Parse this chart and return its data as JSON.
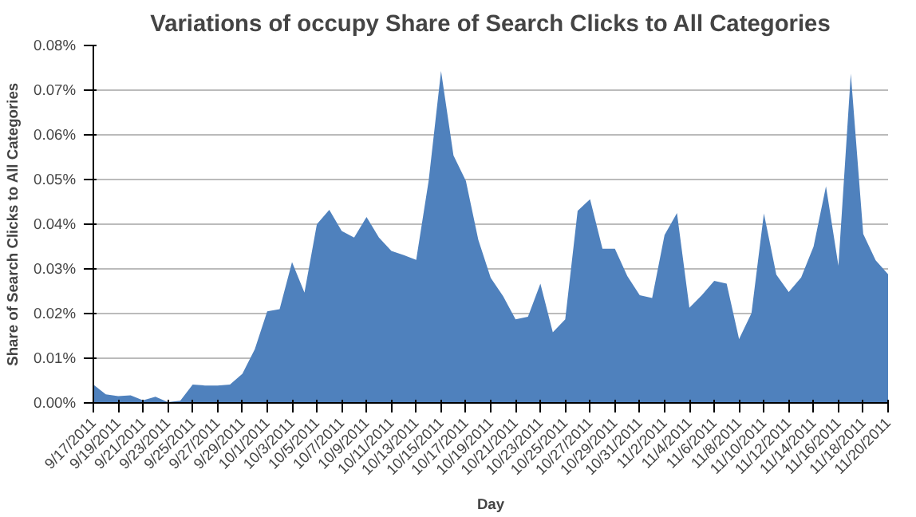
{
  "chart_data": {
    "type": "area",
    "title": "Variations of occupy Share of Search Clicks to All Categories",
    "xlabel": "Day",
    "ylabel": "Share of Search Clicks to All Categories",
    "categories": [
      "9/17/2011",
      null,
      "9/19/2011",
      null,
      "9/21/2011",
      null,
      "9/23/2011",
      null,
      "9/25/2011",
      null,
      "9/27/2011",
      null,
      "9/29/2011",
      null,
      "10/1/2011",
      null,
      "10/3/2011",
      null,
      "10/5/2011",
      null,
      "10/7/2011",
      null,
      "10/9/2011",
      null,
      "10/11/2011",
      null,
      "10/13/2011",
      null,
      "10/15/2011",
      null,
      "10/17/2011",
      null,
      "10/19/2011",
      null,
      "10/21/2011",
      null,
      "10/23/2011",
      null,
      "10/25/2011",
      null,
      "10/27/2011",
      null,
      "10/29/2011",
      null,
      "10/31/2011",
      null,
      "11/2/2011",
      null,
      "11/4/2011",
      null,
      "11/6/2011",
      null,
      "11/8/2011",
      null,
      "11/10/2011",
      null,
      "11/12/2011",
      null,
      "11/14/2011",
      null,
      "11/16/2011",
      null,
      "11/18/2011",
      null,
      "11/20/2011"
    ],
    "series": [
      {
        "color": "#4f81bd",
        "values": [
          0.0041,
          0.0019,
          0.0015,
          0.0017,
          0.0006,
          0.0014,
          0.0002,
          0.0005,
          0.0041,
          0.0039,
          0.0039,
          0.0041,
          0.0065,
          0.012,
          0.0205,
          0.021,
          0.0315,
          0.0247,
          0.04,
          0.0432,
          0.0385,
          0.037,
          0.0416,
          0.037,
          0.034,
          0.0331,
          0.032,
          0.0497,
          0.0743,
          0.0554,
          0.0497,
          0.0365,
          0.028,
          0.0239,
          0.0187,
          0.0193,
          0.0267,
          0.0158,
          0.0187,
          0.043,
          0.0456,
          0.0345,
          0.0345,
          0.0284,
          0.0241,
          0.0235,
          0.0376,
          0.0425,
          0.0213,
          0.0241,
          0.0273,
          0.0267,
          0.0143,
          0.0201,
          0.0424,
          0.0287,
          0.0248,
          0.0281,
          0.035,
          0.0485,
          0.0307,
          0.0737,
          0.0378,
          0.0319,
          0.0288
        ]
      }
    ],
    "ylim": [
      0,
      0.08
    ],
    "yticks": [
      {
        "value": 0,
        "label": "0.00%"
      },
      {
        "value": 0.01,
        "label": "0.01%"
      },
      {
        "value": 0.02,
        "label": "0.02%"
      },
      {
        "value": 0.03,
        "label": "0.03%"
      },
      {
        "value": 0.04,
        "label": "0.04%"
      },
      {
        "value": 0.05,
        "label": "0.05%"
      },
      {
        "value": 0.06,
        "label": "0.06%"
      },
      {
        "value": 0.07,
        "label": "0.07%"
      },
      {
        "value": 0.08,
        "label": "0.08%"
      }
    ],
    "grid": "y"
  }
}
